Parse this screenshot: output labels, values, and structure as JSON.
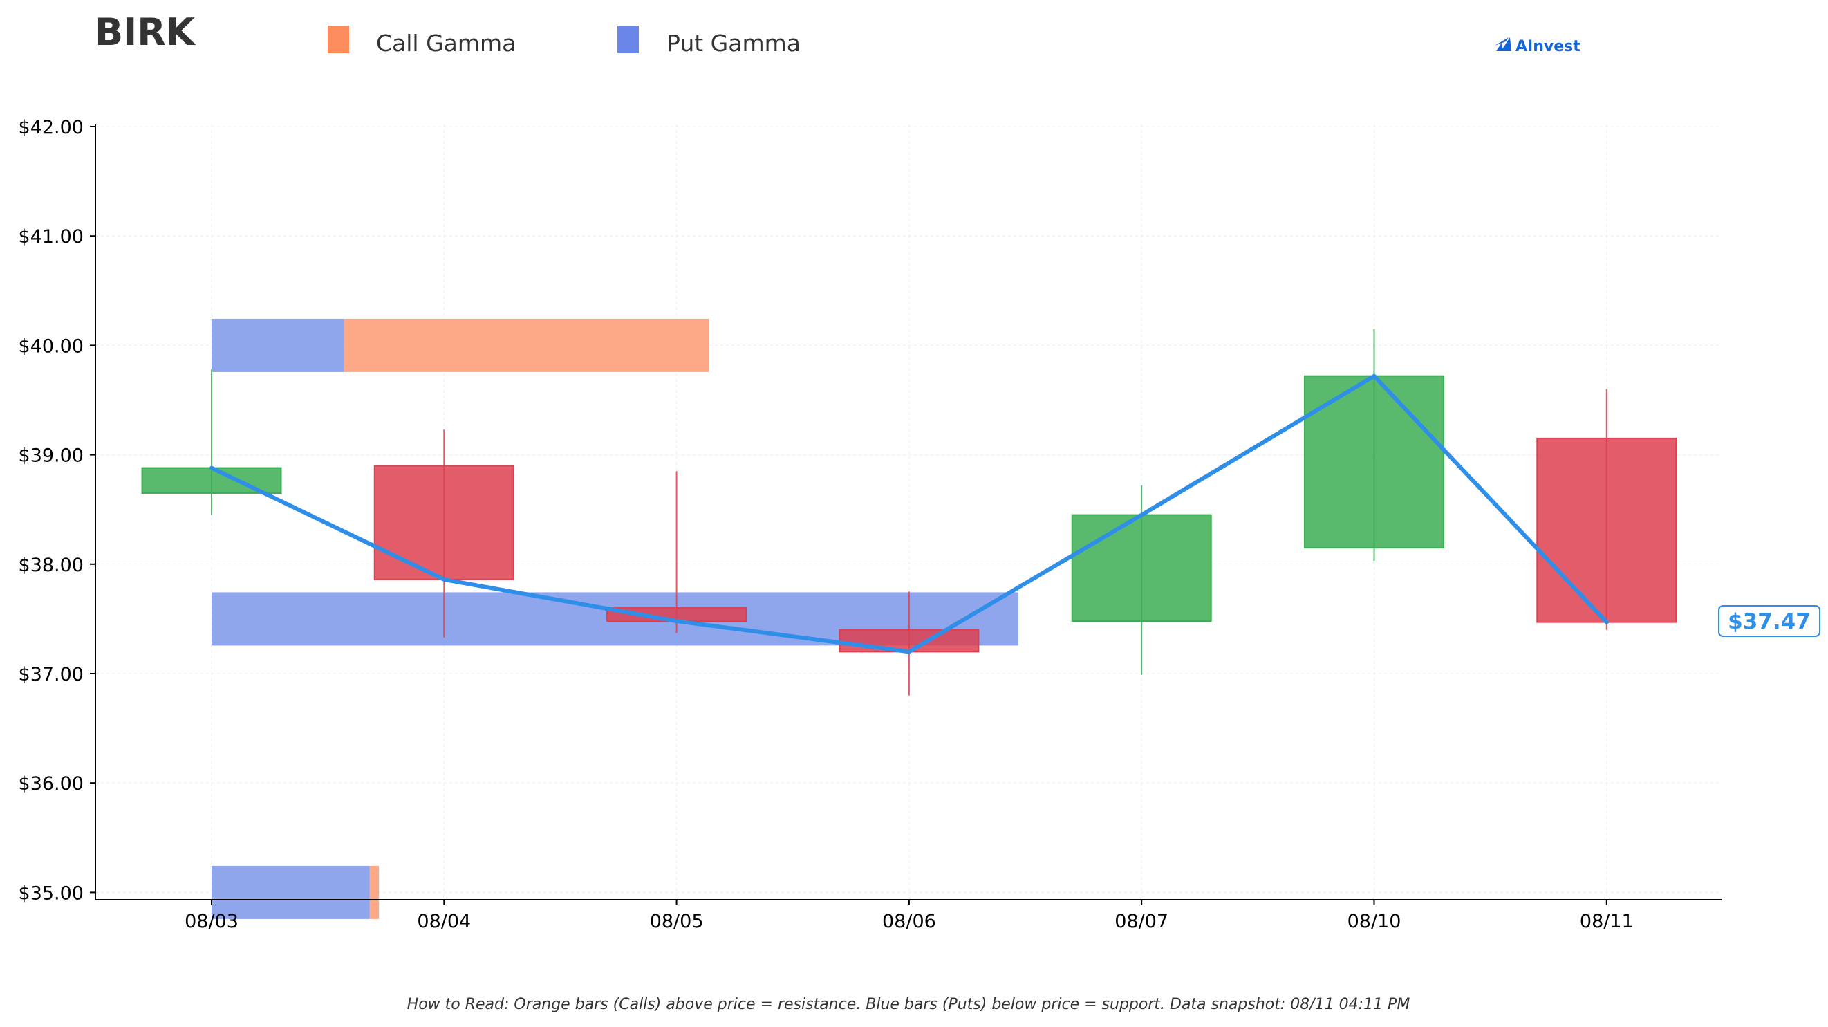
{
  "ticker": "BIRK",
  "legend": [
    {
      "label": "Call Gamma",
      "color": "#fd8c5c"
    },
    {
      "label": "Put Gamma",
      "color": "#6986e8"
    }
  ],
  "logo": {
    "text": "AInvest",
    "icon": "ainvest-logo-icon"
  },
  "footnote": "How to Read: Orange bars (Calls) above price = resistance. Blue bars (Puts) below price = support. Data snapshot: 08/11 04:11 PM",
  "current_price_label": "$37.47",
  "colors": {
    "up": "#3cae54",
    "down": "#dd3f50",
    "line": "#2f8fe8",
    "call": "#fd9a72",
    "put": "#7d97e9"
  },
  "chart_data": {
    "type": "candlestick",
    "categories": [
      "08/03",
      "08/04",
      "08/05",
      "08/06",
      "08/07",
      "08/10",
      "08/11"
    ],
    "ylim": [
      34.95,
      42.0
    ],
    "y_ticks": [
      35,
      36,
      37,
      38,
      39,
      40,
      41,
      42
    ],
    "y_tick_labels": [
      "$35.00",
      "$36.00",
      "$37.00",
      "$38.00",
      "$39.00",
      "$40.00",
      "$41.00",
      "$42.00"
    ],
    "grid": true,
    "candles": [
      {
        "date": "08/03",
        "open": 38.65,
        "high": 39.78,
        "low": 38.45,
        "close": 38.88
      },
      {
        "date": "08/04",
        "open": 38.9,
        "high": 39.23,
        "low": 37.33,
        "close": 37.86
      },
      {
        "date": "08/05",
        "open": 37.6,
        "high": 38.85,
        "low": 37.37,
        "close": 37.48
      },
      {
        "date": "08/06",
        "open": 37.4,
        "high": 37.75,
        "low": 36.8,
        "close": 37.2
      },
      {
        "date": "08/07",
        "open": 37.48,
        "high": 38.72,
        "low": 36.99,
        "close": 38.45
      },
      {
        "date": "08/10",
        "open": 38.15,
        "high": 40.15,
        "low": 38.03,
        "close": 39.72
      },
      {
        "date": "08/11",
        "open": 39.15,
        "high": 39.6,
        "low": 37.4,
        "close": 37.47
      }
    ],
    "close_line": [
      38.88,
      37.86,
      37.48,
      37.2,
      38.45,
      39.72,
      37.47
    ],
    "gamma_bars": [
      {
        "strike": 40.0,
        "put": 0.57,
        "call": 1.57
      },
      {
        "strike": 37.5,
        "put": 3.47,
        "call": 0
      },
      {
        "strike": 35.0,
        "put": 0.68,
        "call": 0.04
      }
    ]
  }
}
